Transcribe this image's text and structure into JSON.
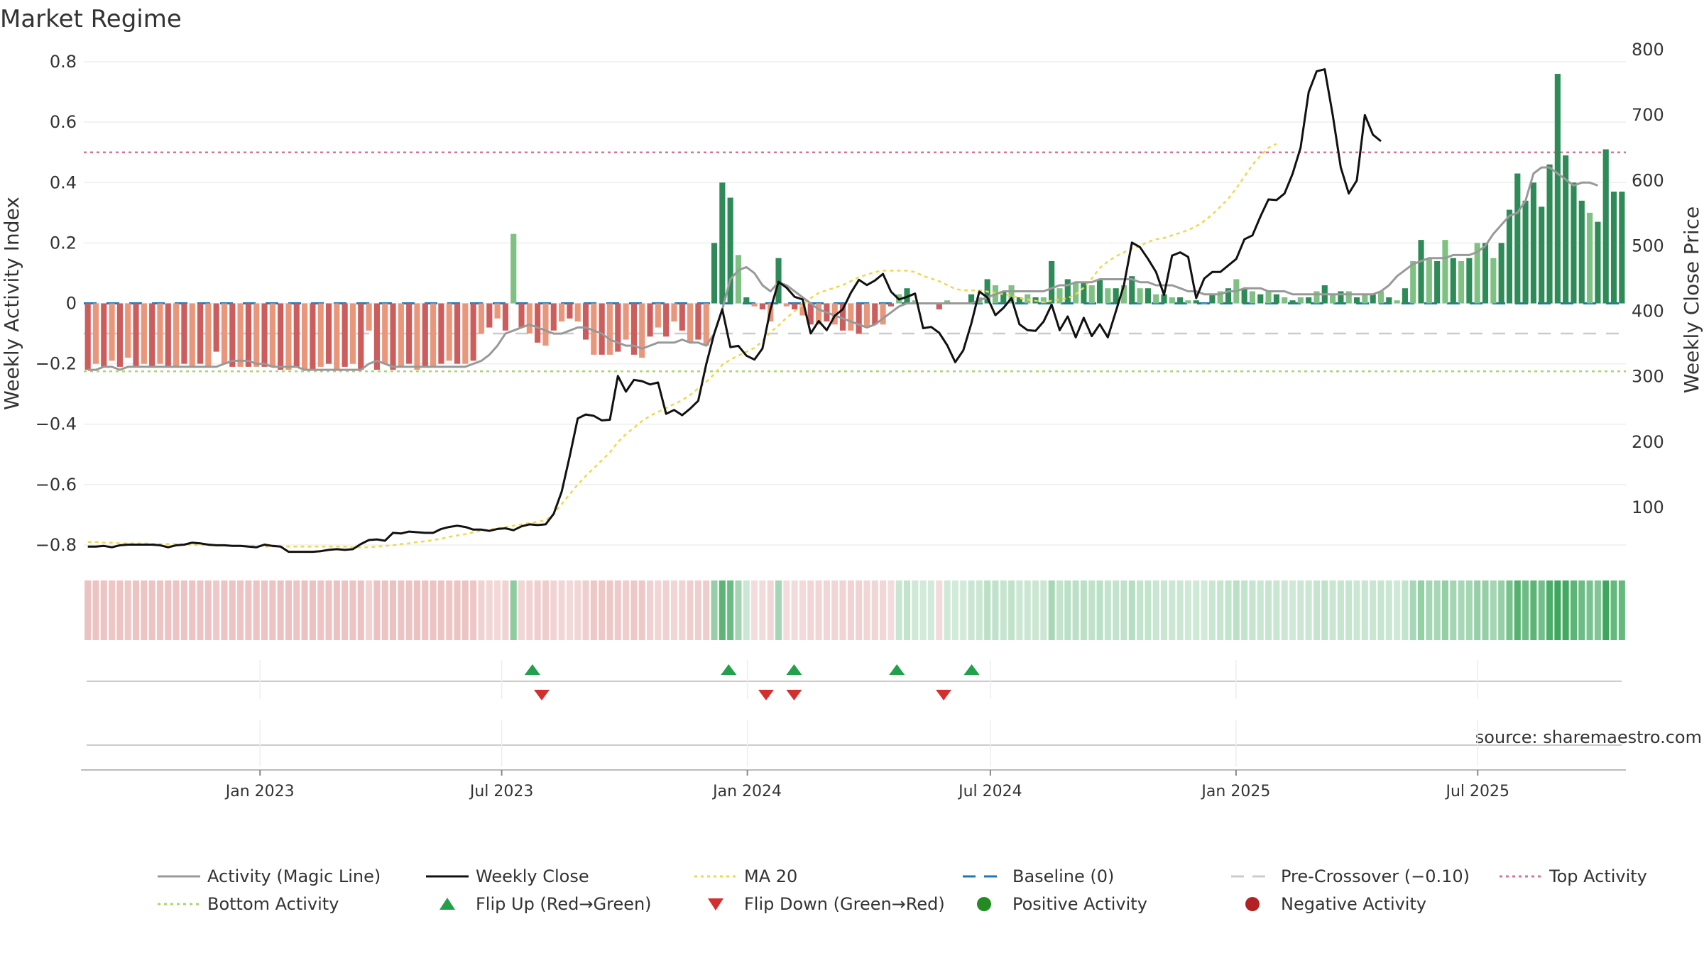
{
  "title": "Market Regime",
  "source": "source: sharemaestro.com",
  "colors": {
    "pos_strong": "#2e8b57",
    "pos_weak": "#7fc183",
    "neg_strong": "#cd5c5c",
    "neg_weak": "#e9967a",
    "magic_line": "#999999",
    "close": "#111111",
    "ma20": "#f0d84a",
    "baseline": "#1f77b4",
    "pre_crossover": "#cccccc",
    "top_activity": "#d9729a",
    "bottom_activity": "#a6d86a",
    "flip_up": "#22a04b",
    "flip_down": "#d32f2f",
    "positive": "#228b22",
    "negative": "#b22222"
  },
  "chart_data": {
    "type": "bar",
    "title": "Market Regime",
    "ylabel": "Weekly Activity Index",
    "y2label": "Weekly Close Price",
    "ylim": [
      -0.84,
      0.84
    ],
    "y2lim": [
      24,
      800
    ],
    "yticks": [
      "0.8",
      "0.6",
      "0.4",
      "0.2",
      "0",
      "−0.2",
      "−0.4",
      "−0.6",
      "−0.8"
    ],
    "yticks_values": [
      0.8,
      0.6,
      0.4,
      0.2,
      0,
      -0.2,
      -0.4,
      -0.6,
      -0.8
    ],
    "y2ticks": [
      "800",
      "700",
      "600",
      "500",
      "400",
      "300",
      "200",
      "100"
    ],
    "y2ticks_values": [
      800,
      700,
      600,
      500,
      400,
      300,
      200,
      100
    ],
    "x_start": "2022-08-22",
    "x_end": "2025-10-20",
    "xticks": [
      {
        "date": "2023-01-01",
        "label": "Jan 2023"
      },
      {
        "date": "2023-07-01",
        "label": "Jul 2023"
      },
      {
        "date": "2024-01-01",
        "label": "Jan 2024"
      },
      {
        "date": "2024-07-01",
        "label": "Jul 2024"
      },
      {
        "date": "2025-01-01",
        "label": "Jan 2025"
      },
      {
        "date": "2025-07-01",
        "label": "Jul 2025"
      }
    ],
    "grid": true,
    "legend_position": "bottom",
    "reference_lines": [
      {
        "name": "Baseline (0)",
        "value": 0
      },
      {
        "name": "Pre-Crossover (−0.10)",
        "value": -0.1
      },
      {
        "name": "Top Activity",
        "value": 0.5
      },
      {
        "name": "Bottom Activity",
        "value": -0.225
      }
    ],
    "activity": [
      -0.22,
      -0.2,
      -0.21,
      -0.19,
      -0.21,
      -0.18,
      -0.21,
      -0.2,
      -0.21,
      -0.2,
      -0.21,
      -0.21,
      -0.2,
      -0.21,
      -0.2,
      -0.21,
      -0.16,
      -0.2,
      -0.21,
      -0.21,
      -0.21,
      -0.21,
      -0.21,
      -0.21,
      -0.22,
      -0.22,
      -0.21,
      -0.22,
      -0.22,
      -0.21,
      -0.2,
      -0.22,
      -0.21,
      -0.2,
      -0.22,
      -0.09,
      -0.22,
      -0.2,
      -0.22,
      -0.21,
      -0.2,
      -0.22,
      -0.21,
      -0.21,
      -0.2,
      -0.19,
      -0.2,
      -0.2,
      -0.19,
      -0.1,
      -0.08,
      -0.05,
      -0.09,
      0.23,
      -0.08,
      -0.1,
      -0.13,
      -0.14,
      -0.09,
      -0.06,
      -0.05,
      -0.06,
      -0.12,
      -0.17,
      -0.17,
      -0.17,
      -0.16,
      -0.12,
      -0.17,
      -0.18,
      -0.11,
      -0.08,
      -0.11,
      -0.06,
      -0.09,
      -0.13,
      -0.12,
      -0.14,
      0.2,
      0.4,
      0.35,
      0.16,
      0.02,
      -0.01,
      -0.02,
      -0.06,
      0.15,
      -0.01,
      -0.02,
      -0.04,
      -0.07,
      -0.07,
      -0.06,
      -0.07,
      -0.09,
      -0.09,
      -0.1,
      -0.08,
      -0.07,
      -0.07,
      -0.01,
      0.03,
      0.05,
      0.01,
      0.0,
      0.0,
      -0.02,
      0.01,
      0.0,
      0.0,
      0.03,
      0.02,
      0.08,
      0.06,
      0.04,
      0.06,
      0.02,
      0.03,
      0.02,
      0.02,
      0.14,
      0.05,
      0.08,
      0.07,
      0.07,
      0.06,
      0.08,
      0.05,
      0.05,
      0.06,
      0.09,
      0.05,
      0.05,
      0.03,
      0.03,
      0.02,
      0.02,
      0.01,
      0.01,
      0.0,
      0.03,
      0.04,
      0.05,
      0.08,
      0.05,
      0.04,
      0.03,
      0.04,
      0.03,
      0.02,
      0.01,
      0.02,
      0.02,
      0.04,
      0.06,
      0.03,
      0.04,
      0.04,
      0.02,
      0.03,
      0.03,
      0.04,
      0.02,
      0.01,
      0.05,
      0.14,
      0.21,
      0.15,
      0.14,
      0.21,
      0.15,
      0.14,
      0.15,
      0.2,
      0.2,
      0.15,
      0.2,
      0.31,
      0.43,
      0.34,
      0.4,
      0.32,
      0.46,
      0.76,
      0.49,
      0.4,
      0.34,
      0.3,
      0.27,
      0.51,
      0.37,
      0.37
    ],
    "magic_line": [
      -0.22,
      -0.22,
      -0.21,
      -0.21,
      -0.22,
      -0.21,
      -0.21,
      -0.21,
      -0.21,
      -0.21,
      -0.21,
      -0.21,
      -0.21,
      -0.21,
      -0.21,
      -0.21,
      -0.21,
      -0.2,
      -0.19,
      -0.19,
      -0.19,
      -0.2,
      -0.2,
      -0.21,
      -0.21,
      -0.21,
      -0.21,
      -0.22,
      -0.22,
      -0.22,
      -0.22,
      -0.22,
      -0.22,
      -0.22,
      -0.22,
      -0.2,
      -0.19,
      -0.2,
      -0.21,
      -0.21,
      -0.21,
      -0.21,
      -0.21,
      -0.21,
      -0.21,
      -0.21,
      -0.21,
      -0.21,
      -0.2,
      -0.19,
      -0.17,
      -0.14,
      -0.1,
      -0.09,
      -0.08,
      -0.07,
      -0.08,
      -0.09,
      -0.1,
      -0.1,
      -0.09,
      -0.08,
      -0.08,
      -0.09,
      -0.1,
      -0.12,
      -0.13,
      -0.14,
      -0.14,
      -0.15,
      -0.14,
      -0.13,
      -0.13,
      -0.13,
      -0.12,
      -0.13,
      -0.13,
      -0.14,
      -0.1,
      -0.02,
      0.08,
      0.11,
      0.12,
      0.1,
      0.06,
      0.04,
      0.07,
      0.06,
      0.04,
      0.02,
      0.0,
      -0.02,
      -0.03,
      -0.04,
      -0.05,
      -0.06,
      -0.07,
      -0.08,
      -0.07,
      -0.05,
      -0.03,
      -0.01,
      0.0,
      0.0,
      0.0,
      0.0,
      0.0,
      0.0,
      0.0,
      0.0,
      0.0,
      0.01,
      0.02,
      0.03,
      0.04,
      0.04,
      0.04,
      0.04,
      0.04,
      0.04,
      0.05,
      0.06,
      0.06,
      0.07,
      0.07,
      0.07,
      0.08,
      0.08,
      0.08,
      0.08,
      0.08,
      0.07,
      0.07,
      0.06,
      0.06,
      0.06,
      0.05,
      0.04,
      0.04,
      0.03,
      0.03,
      0.03,
      0.04,
      0.04,
      0.05,
      0.05,
      0.05,
      0.04,
      0.04,
      0.04,
      0.03,
      0.03,
      0.03,
      0.03,
      0.03,
      0.03,
      0.03,
      0.03,
      0.03,
      0.03,
      0.03,
      0.04,
      0.06,
      0.09,
      0.11,
      0.13,
      0.14,
      0.15,
      0.15,
      0.15,
      0.16,
      0.16,
      0.16,
      0.17,
      0.19,
      0.23,
      0.26,
      0.29,
      0.3,
      0.34,
      0.43,
      0.45,
      0.45,
      0.43,
      0.41,
      0.39,
      0.4,
      0.4,
      0.39
    ],
    "weekly_close": [
      40,
      40,
      41,
      39,
      42,
      43,
      43,
      43,
      43,
      42,
      39,
      42,
      43,
      46,
      45,
      43,
      42,
      42,
      41,
      41,
      40,
      39,
      43,
      41,
      40,
      32,
      32,
      32,
      32,
      33,
      35,
      36,
      35,
      36,
      44,
      50,
      51,
      49,
      61,
      60,
      63,
      62,
      61,
      61,
      67,
      70,
      72,
      70,
      66,
      66,
      64,
      67,
      68,
      65,
      71,
      74,
      73,
      74,
      90,
      124,
      178,
      236,
      242,
      240,
      233,
      234,
      301,
      277,
      295,
      293,
      288,
      291,
      243,
      249,
      241,
      251,
      263,
      319,
      366,
      403,
      345,
      347,
      332,
      326,
      343,
      403,
      445,
      436,
      422,
      418,
      366,
      385,
      371,
      393,
      403,
      428,
      448,
      440,
      447,
      457,
      430,
      418,
      422,
      427,
      374,
      376,
      367,
      348,
      322,
      340,
      381,
      430,
      421,
      394,
      405,
      420,
      380,
      371,
      370,
      384,
      410,
      371,
      392,
      360,
      390,
      362,
      380,
      360,
      400,
      440,
      505,
      498,
      480,
      460,
      425,
      485,
      490,
      483,
      420,
      450,
      460,
      460,
      470,
      480,
      510,
      516,
      545,
      571,
      570,
      580,
      610,
      650,
      735,
      767,
      770,
      700,
      620,
      580,
      600,
      700,
      670,
      660
    ],
    "ma20": [
      47,
      47,
      46,
      46,
      45,
      45,
      45,
      45,
      44,
      44,
      44,
      44,
      43,
      43,
      42,
      42,
      42,
      42,
      41,
      41,
      41,
      41,
      40,
      40,
      40,
      40,
      40,
      40,
      40,
      40,
      40,
      40,
      40,
      39,
      39,
      39,
      40,
      41,
      42,
      44,
      45,
      47,
      48,
      50,
      52,
      55,
      57,
      59,
      62,
      64,
      66,
      68,
      70,
      72,
      74,
      76,
      78,
      80,
      90,
      105,
      120,
      135,
      148,
      160,
      172,
      184,
      200,
      212,
      222,
      232,
      240,
      246,
      252,
      258,
      264,
      272,
      282,
      292,
      304,
      318,
      326,
      332,
      338,
      344,
      354,
      368,
      378,
      390,
      400,
      410,
      420,
      428,
      432,
      436,
      440,
      446,
      452,
      456,
      460,
      462,
      462,
      462,
      462,
      460,
      454,
      450,
      446,
      440,
      434,
      432,
      432,
      432,
      430,
      428,
      426,
      424,
      420,
      418,
      416,
      414,
      416,
      418,
      420,
      426,
      436,
      450,
      466,
      476,
      484,
      490,
      496,
      500,
      506,
      510,
      512,
      516,
      520,
      524,
      530,
      538,
      548,
      560,
      572,
      588,
      606,
      624,
      638,
      650,
      656
    ],
    "flip_up_dates": [
      "2023-07-24",
      "2023-12-18",
      "2024-02-05",
      "2024-04-22",
      "2024-06-17"
    ],
    "flip_down_dates": [
      "2023-07-31",
      "2024-01-15",
      "2024-02-05",
      "2024-05-27"
    ],
    "legend": [
      {
        "label": "Activity (Magic Line)",
        "kind": "line-solid",
        "color": "#999999"
      },
      {
        "label": "Weekly Close",
        "kind": "line-solid",
        "color": "#111111"
      },
      {
        "label": "MA 20",
        "kind": "line-dotted",
        "color": "#f0d84a"
      },
      {
        "label": "Baseline (0)",
        "kind": "line-dashed",
        "color": "#1f77b4"
      },
      {
        "label": "Pre-Crossover (−0.10)",
        "kind": "line-dashed",
        "color": "#cccccc"
      },
      {
        "label": "Top Activity",
        "kind": "line-dotted",
        "color": "#d9729a"
      },
      {
        "label": "Bottom Activity",
        "kind": "line-dotted",
        "color": "#a6d86a"
      },
      {
        "label": "Flip Up (Red→Green)",
        "kind": "triangle-up",
        "color": "#22a04b"
      },
      {
        "label": "Flip Down (Green→Red)",
        "kind": "triangle-down",
        "color": "#d32f2f"
      },
      {
        "label": "Positive Activity",
        "kind": "dot",
        "color": "#228b22"
      },
      {
        "label": "Negative Activity",
        "kind": "dot",
        "color": "#b22222"
      }
    ]
  }
}
